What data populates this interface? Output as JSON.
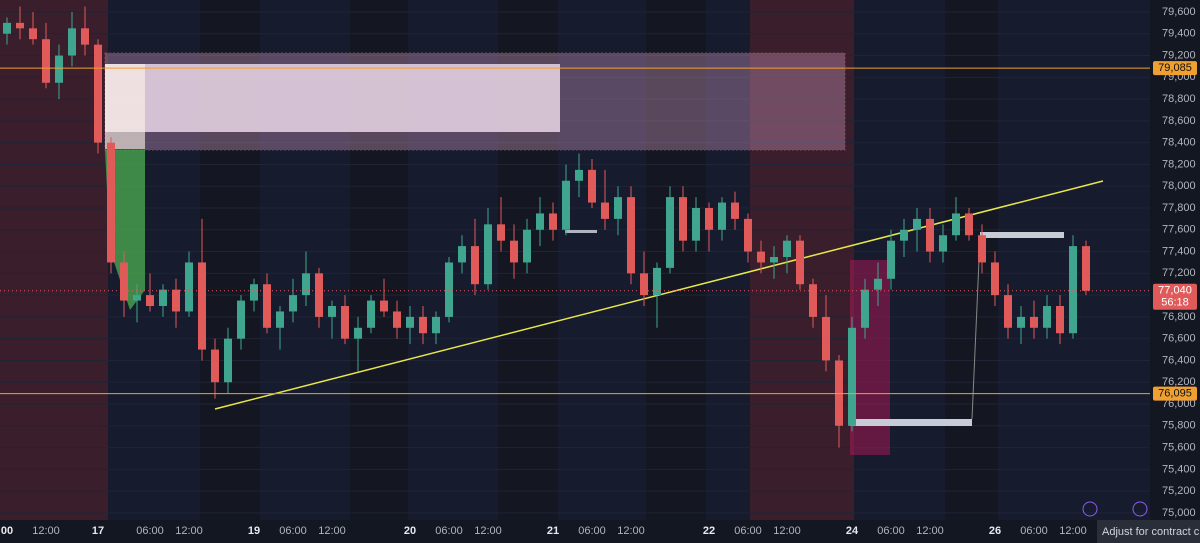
{
  "chart_data": {
    "type": "candlestick",
    "categories": [
      "00",
      null,
      null,
      "12:00",
      null,
      null,
      null,
      "17",
      null,
      null,
      null,
      "06:00",
      null,
      null,
      "12:00",
      null,
      null,
      null,
      null,
      "19",
      null,
      null,
      "06:00",
      null,
      null,
      "12:00",
      null,
      null,
      null,
      null,
      null,
      "20",
      null,
      null,
      "06:00",
      null,
      null,
      "12:00",
      null,
      null,
      null,
      null,
      "21",
      null,
      null,
      "06:00",
      null,
      null,
      "12:00",
      null,
      null,
      null,
      null,
      null,
      "22",
      null,
      null,
      "06:00",
      null,
      null,
      "12:00",
      null,
      null,
      null,
      null,
      "24",
      null,
      null,
      "06:00",
      null,
      null,
      "12:00",
      null,
      null,
      null,
      null,
      "26",
      null,
      null,
      "06:00",
      null,
      null,
      "12:00",
      null
    ],
    "open": [
      79400,
      79500,
      79450,
      79350,
      78950,
      79200,
      79450,
      79300,
      78400,
      77300,
      76950,
      77000,
      76900,
      77050,
      76850,
      77300,
      76500,
      76200,
      76600,
      76950,
      77100,
      76700,
      76850,
      77000,
      77200,
      76800,
      76900,
      76600,
      76700,
      76950,
      76850,
      76700,
      76800,
      76650,
      76800,
      77300,
      77450,
      77100,
      77650,
      77500,
      77300,
      77600,
      77750,
      77600,
      78050,
      78150,
      77850,
      77700,
      77900,
      77200,
      77000,
      77250,
      77900,
      77500,
      77800,
      77600,
      77850,
      77700,
      77400,
      77300,
      77350,
      77500,
      77100,
      76800,
      76400,
      75800,
      76700,
      77050,
      77150,
      77500,
      77600,
      77700,
      77400,
      77550,
      77750,
      77550,
      77300,
      77000,
      76700,
      76800,
      76700,
      76900,
      76650,
      77450
    ],
    "high": [
      79550,
      79650,
      79600,
      79500,
      79300,
      79600,
      79650,
      79350,
      78450,
      77400,
      77100,
      77200,
      77100,
      77150,
      77400,
      77700,
      76600,
      76700,
      77000,
      77150,
      77200,
      76900,
      77150,
      77400,
      77250,
      76950,
      77000,
      76800,
      77000,
      77150,
      76950,
      76900,
      76900,
      76850,
      77350,
      77550,
      77700,
      77800,
      77900,
      77650,
      77700,
      77900,
      77850,
      78200,
      78300,
      78250,
      78150,
      78000,
      78000,
      77400,
      77300,
      78000,
      78000,
      77900,
      77850,
      77900,
      77950,
      77750,
      77500,
      77450,
      77550,
      77550,
      77150,
      77000,
      76450,
      76800,
      77150,
      77300,
      77600,
      77700,
      77800,
      77800,
      77650,
      77900,
      77800,
      77650,
      77400,
      77100,
      76900,
      76950,
      77000,
      77000,
      77550,
      77500
    ],
    "low": [
      79300,
      79350,
      79300,
      78900,
      78800,
      79100,
      79200,
      78300,
      77200,
      76800,
      76750,
      76850,
      76800,
      76700,
      76800,
      76400,
      76050,
      76100,
      76500,
      76850,
      76650,
      76500,
      76750,
      76900,
      76700,
      76600,
      76550,
      76300,
      76650,
      76800,
      76600,
      76550,
      76550,
      76550,
      76750,
      77200,
      77000,
      77050,
      77400,
      77150,
      77200,
      77450,
      77500,
      77550,
      77900,
      77800,
      77600,
      77550,
      77100,
      76900,
      76700,
      77200,
      77400,
      77400,
      77400,
      77500,
      77600,
      77300,
      77200,
      77150,
      77200,
      77050,
      76700,
      76300,
      75600,
      75750,
      76600,
      76900,
      77050,
      77350,
      77400,
      77300,
      77300,
      77500,
      77500,
      77200,
      76900,
      76600,
      76550,
      76600,
      76600,
      76550,
      76600,
      77000
    ],
    "close": [
      79500,
      79450,
      79350,
      78950,
      79200,
      79450,
      79300,
      78400,
      77300,
      76950,
      77000,
      76900,
      77050,
      76850,
      77300,
      76500,
      76200,
      76600,
      76950,
      77100,
      76700,
      76850,
      77000,
      77200,
      76800,
      76900,
      76600,
      76700,
      76950,
      76850,
      76700,
      76800,
      76650,
      76800,
      77300,
      77450,
      77100,
      77650,
      77500,
      77300,
      77600,
      77750,
      77600,
      78050,
      78150,
      77850,
      77700,
      77900,
      77200,
      77000,
      77250,
      77900,
      77500,
      77800,
      77600,
      77850,
      77700,
      77400,
      77300,
      77350,
      77500,
      77100,
      76800,
      76400,
      75800,
      76700,
      77050,
      77150,
      77500,
      77600,
      77700,
      77400,
      77550,
      77750,
      77550,
      77300,
      77000,
      76700,
      76800,
      76700,
      76900,
      76650,
      77450,
      77040
    ],
    "up_color": "#3fa58f",
    "down_color": "#e05a5a",
    "ylim": [
      74935,
      79710
    ],
    "yticks": [
      {
        "value": 75000,
        "label": "75,000"
      },
      {
        "value": 75200,
        "label": "75,200"
      },
      {
        "value": 75400,
        "label": "75,400"
      },
      {
        "value": 75600,
        "label": "75,600"
      },
      {
        "value": 75800,
        "label": "75,800"
      },
      {
        "value": 76000,
        "label": "76,000"
      },
      {
        "value": 76200,
        "label": "76,200"
      },
      {
        "value": 76400,
        "label": "76,400"
      },
      {
        "value": 76600,
        "label": "76,600"
      },
      {
        "value": 76800,
        "label": "76,800"
      },
      {
        "value": 77000,
        "label": "77,000"
      },
      {
        "value": 77200,
        "label": "77,200"
      },
      {
        "value": 77400,
        "label": "77,400"
      },
      {
        "value": 77600,
        "label": "77,600"
      },
      {
        "value": 77800,
        "label": "77,800"
      },
      {
        "value": 78000,
        "label": "78,000"
      },
      {
        "value": 78200,
        "label": "78,200"
      },
      {
        "value": 78400,
        "label": "78,400"
      },
      {
        "value": 78600,
        "label": "78,600"
      },
      {
        "value": 78800,
        "label": "78,800"
      },
      {
        "value": 79000,
        "label": "79,000"
      },
      {
        "value": 79200,
        "label": "79,200"
      },
      {
        "value": 79400,
        "label": "79,400"
      },
      {
        "value": 79600,
        "label": "79,600"
      }
    ],
    "price_lines": [
      {
        "value": 79085,
        "label": "79,085",
        "color": "#f0a030"
      },
      {
        "value": 76095,
        "label": "76,095",
        "color": "#f0a030"
      }
    ],
    "last_price": {
      "value": 77040,
      "label": "77,040",
      "countdown": "56:18",
      "color": "#e05a5a"
    },
    "tooltip": "Adjust for contract cha"
  }
}
